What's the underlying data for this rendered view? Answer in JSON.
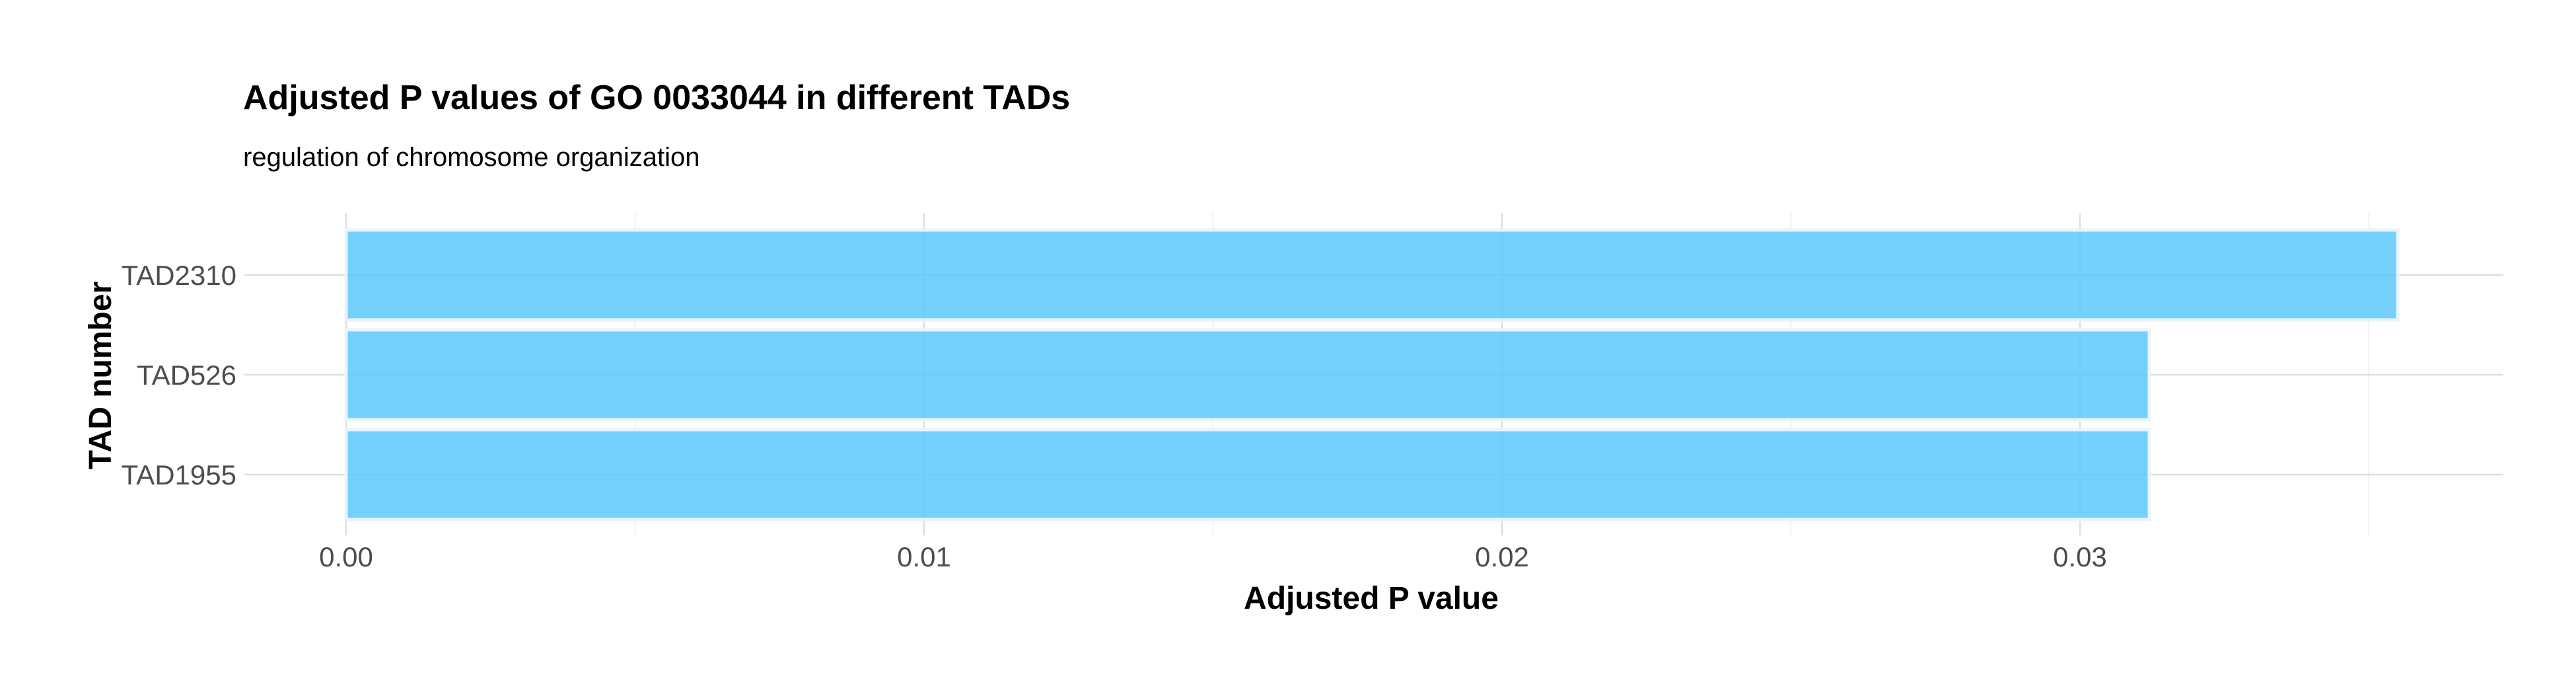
{
  "chart_data": {
    "type": "bar",
    "orientation": "horizontal",
    "title": "Adjusted P values of GO 0033044 in different TADs",
    "subtitle": "regulation of chromosome organization",
    "xlabel": "Adjusted P value",
    "ylabel": "TAD number",
    "categories": [
      "TAD2310",
      "TAD526",
      "TAD1955"
    ],
    "values": [
      0.0355,
      0.0312,
      0.0312
    ],
    "xlim": [
      0,
      0.0369
    ],
    "xticks": [
      0.0,
      0.01,
      0.02,
      0.03
    ],
    "xtick_labels": [
      "0.00",
      "0.01",
      "0.02",
      "0.03"
    ],
    "grid": true,
    "bar_color": "#5ec8fb",
    "bar_outline_color": "#e8f4fb",
    "legend": "none"
  }
}
